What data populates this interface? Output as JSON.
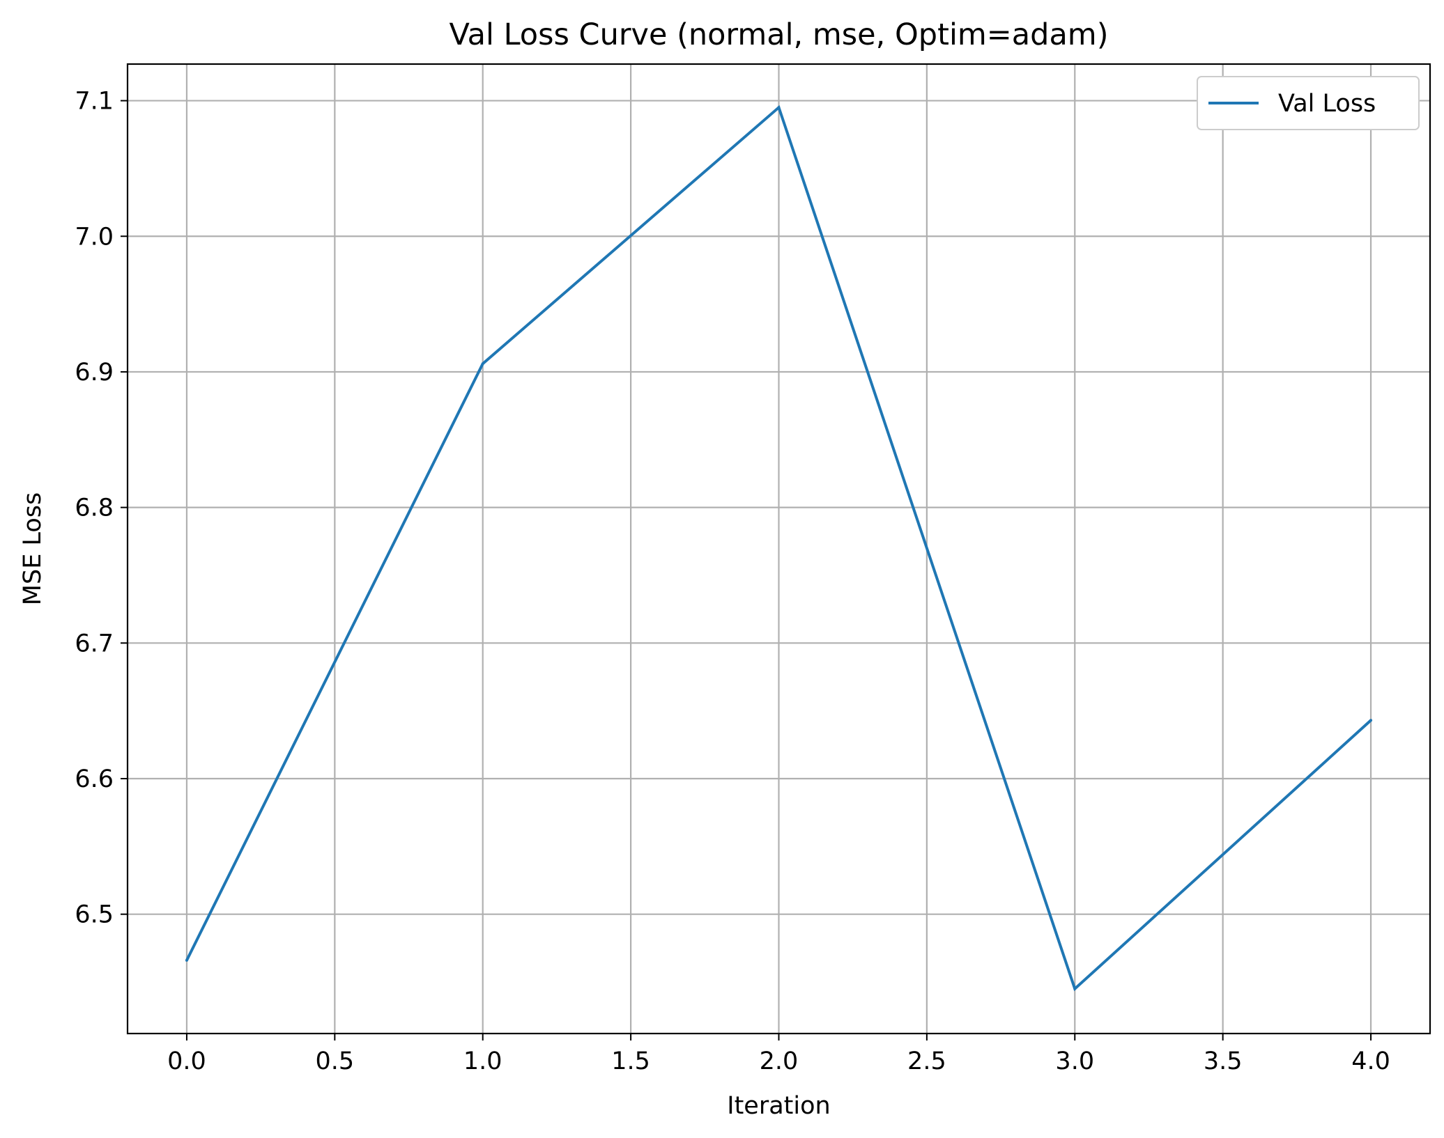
{
  "chart_data": {
    "type": "line",
    "title": "Val Loss Curve (normal, mse, Optim=adam)",
    "xlabel": "Iteration",
    "ylabel": "MSE Loss",
    "xlim": [
      -0.2,
      4.2
    ],
    "ylim": [
      6.412,
      7.127
    ],
    "x_ticks": [
      0.0,
      0.5,
      1.0,
      1.5,
      2.0,
      2.5,
      3.0,
      3.5,
      4.0
    ],
    "x_tick_labels": [
      "0.0",
      "0.5",
      "1.0",
      "1.5",
      "2.0",
      "2.5",
      "3.0",
      "3.5",
      "4.0"
    ],
    "y_ticks": [
      6.5,
      6.6,
      6.7,
      6.8,
      6.9,
      7.0,
      7.1
    ],
    "y_tick_labels": [
      "6.5",
      "6.6",
      "6.7",
      "6.8",
      "6.9",
      "7.0",
      "7.1"
    ],
    "grid": true,
    "legend_position": "top-right",
    "series": [
      {
        "name": "Val Loss",
        "color": "#1f77b4",
        "x": [
          0,
          1,
          2,
          3,
          4
        ],
        "y": [
          6.466,
          6.906,
          7.095,
          6.445,
          6.643
        ]
      }
    ]
  }
}
